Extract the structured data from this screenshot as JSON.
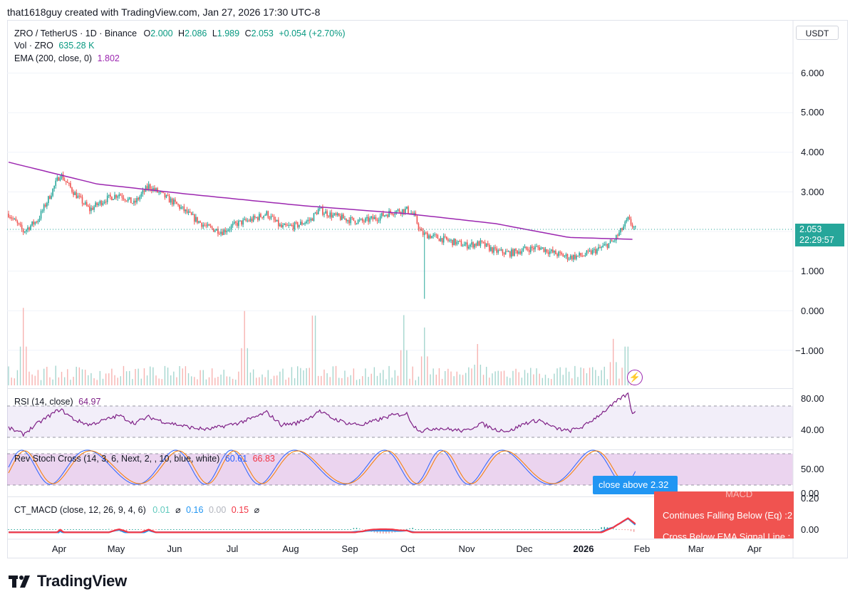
{
  "header": {
    "created_text": "that1618guy created with TradingView.com, Jan 27, 2026 17:30 UTC-8"
  },
  "legend": {
    "symbol": "ZRO / TetherUS · 1D · Binance",
    "o_label": "O",
    "o_value": "2.000",
    "h_label": "H",
    "h_value": "2.086",
    "l_label": "L",
    "l_value": "1.989",
    "c_label": "C",
    "c_value": "2.053",
    "change": "+0.054 (+2.70%)",
    "vol_label": "Vol · ZRO",
    "vol_value": "635.28 K",
    "ema_label": "EMA (200, close, 0)",
    "ema_value": "1.802"
  },
  "currency": "USDT",
  "price_tag": {
    "price": "2.053",
    "countdown": "22:29:57"
  },
  "bolt_icon": "lightning-icon",
  "rsi_legend": {
    "label": "RSI (14, close)",
    "value": "64.97"
  },
  "stoch_legend": {
    "label": "Rev Stoch Cross (14, 3, 6, Next, 2, , 10, blue, white)",
    "value1": "60.61",
    "value2": "66.83"
  },
  "macd_legend": {
    "label": "CT_MACD (close, 12, 26, 9, 4, 6)",
    "v1": "0.01",
    "sym1": "⌀",
    "v2": "0.16",
    "v3": "0.00",
    "v4": "0.15",
    "sym2": "⌀"
  },
  "tooltips": {
    "blue_text": "close above 2.32",
    "red_top": "MACD",
    "red_line1": "Continues Falling Below (Eq) :2",
    "red_line2": "Cross Below EMA Signal Line : "
  },
  "brand": {
    "name": "TradingView",
    "logo_icon": "tradingview-logo-icon"
  },
  "colors": {
    "up": "#26a69a",
    "down": "#ef5350",
    "ema": "#9c27b0",
    "rsi": "#7e1f86",
    "macd": "#2196f3",
    "signal": "#f23645"
  },
  "chart_data": {
    "type": "candlestick",
    "x_ticks": [
      "Apr",
      "May",
      "Jun",
      "Jul",
      "Aug",
      "Sep",
      "Oct",
      "Nov",
      "Dec",
      "2026",
      "Feb",
      "Mar",
      "Apr"
    ],
    "y_ticks": [
      "6.000",
      "5.000",
      "4.000",
      "3.000",
      "2.000",
      "1.000",
      "0.000",
      "−1.000"
    ],
    "rsi_ticks": [
      "80.00",
      "40.00"
    ],
    "stoch_ticks": [
      "50.00",
      "0.00"
    ],
    "macd_ticks": [
      "0.20",
      "0.00"
    ],
    "price_keypoints": [
      [
        0,
        2.45
      ],
      [
        10,
        2.0
      ],
      [
        20,
        2.3
      ],
      [
        28,
        2.9
      ],
      [
        35,
        3.45
      ],
      [
        45,
        2.95
      ],
      [
        55,
        2.55
      ],
      [
        65,
        2.8
      ],
      [
        75,
        2.95
      ],
      [
        85,
        2.7
      ],
      [
        95,
        3.15
      ],
      [
        105,
        2.9
      ],
      [
        115,
        2.65
      ],
      [
        125,
        2.35
      ],
      [
        135,
        2.1
      ],
      [
        145,
        2.0
      ],
      [
        155,
        2.2
      ],
      [
        165,
        2.3
      ],
      [
        175,
        2.45
      ],
      [
        185,
        2.1
      ],
      [
        195,
        2.15
      ],
      [
        205,
        2.3
      ],
      [
        210,
        2.55
      ],
      [
        220,
        2.4
      ],
      [
        230,
        2.3
      ],
      [
        240,
        2.25
      ],
      [
        250,
        2.35
      ],
      [
        260,
        2.5
      ],
      [
        270,
        2.55
      ],
      [
        275,
        2.4
      ],
      [
        280,
        1.95
      ],
      [
        290,
        1.85
      ],
      [
        300,
        1.75
      ],
      [
        310,
        1.65
      ],
      [
        320,
        1.7
      ],
      [
        330,
        1.5
      ],
      [
        340,
        1.45
      ],
      [
        350,
        1.55
      ],
      [
        360,
        1.6
      ],
      [
        370,
        1.45
      ],
      [
        380,
        1.35
      ],
      [
        390,
        1.4
      ],
      [
        400,
        1.55
      ],
      [
        410,
        1.75
      ],
      [
        415,
        2.0
      ],
      [
        420,
        2.3
      ],
      [
        425,
        2.05
      ]
    ],
    "ema_keypoints": [
      [
        0,
        3.75
      ],
      [
        60,
        3.2
      ],
      [
        120,
        2.95
      ],
      [
        200,
        2.65
      ],
      [
        270,
        2.45
      ],
      [
        330,
        2.2
      ],
      [
        380,
        1.85
      ],
      [
        425,
        1.8
      ]
    ],
    "rsi_keypoints": [
      [
        0,
        42
      ],
      [
        10,
        34
      ],
      [
        20,
        48
      ],
      [
        28,
        58
      ],
      [
        35,
        66
      ],
      [
        45,
        52
      ],
      [
        55,
        46
      ],
      [
        65,
        52
      ],
      [
        75,
        58
      ],
      [
        85,
        48
      ],
      [
        95,
        56
      ],
      [
        105,
        50
      ],
      [
        115,
        46
      ],
      [
        125,
        42
      ],
      [
        135,
        40
      ],
      [
        145,
        44
      ],
      [
        155,
        48
      ],
      [
        165,
        54
      ],
      [
        175,
        62
      ],
      [
        185,
        46
      ],
      [
        195,
        48
      ],
      [
        205,
        56
      ],
      [
        210,
        64
      ],
      [
        220,
        54
      ],
      [
        230,
        48
      ],
      [
        240,
        46
      ],
      [
        250,
        52
      ],
      [
        260,
        58
      ],
      [
        270,
        60
      ],
      [
        275,
        44
      ],
      [
        280,
        38
      ],
      [
        290,
        42
      ],
      [
        300,
        40
      ],
      [
        310,
        38
      ],
      [
        320,
        48
      ],
      [
        330,
        40
      ],
      [
        340,
        38
      ],
      [
        350,
        48
      ],
      [
        360,
        52
      ],
      [
        370,
        42
      ],
      [
        380,
        38
      ],
      [
        390,
        44
      ],
      [
        400,
        58
      ],
      [
        410,
        72
      ],
      [
        415,
        80
      ],
      [
        420,
        85
      ],
      [
        423,
        60
      ],
      [
        425,
        65
      ]
    ],
    "volume_spikes": [
      [
        10,
        0.75
      ],
      [
        160,
        0.72
      ],
      [
        207,
        0.9
      ],
      [
        268,
        0.68
      ],
      [
        282,
        0.56
      ],
      [
        318,
        0.4
      ],
      [
        410,
        0.45
      ],
      [
        419,
        0.5
      ]
    ]
  }
}
